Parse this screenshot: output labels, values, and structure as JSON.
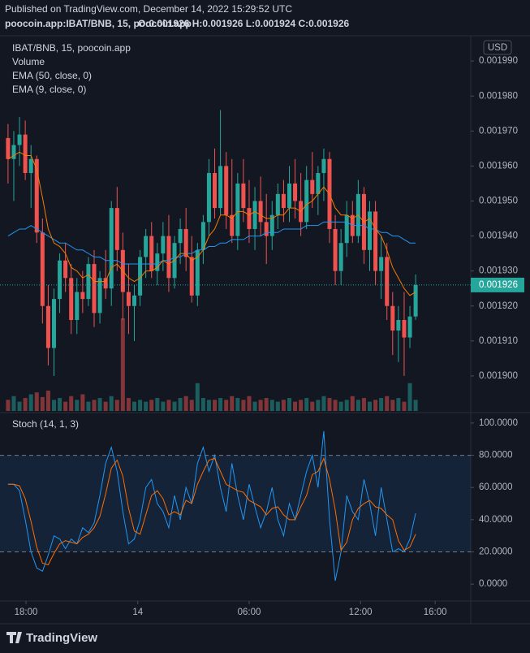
{
  "header": {
    "published": "Published on TradingView.com, December 14, 2022 15:29:52 UTC",
    "symbol": "poocoin.app:IBAT/BNB, 15, poocoin.app",
    "ohlc": "O:0.001926 H:0.001926 L:0.001924 C:0.001926"
  },
  "footer": {
    "logo": "TradingView"
  },
  "chart_data": [
    {
      "type": "candlestick",
      "title": "IBAT/BNB, 15, poocoin.app",
      "currency": "USD",
      "up_color": "#26a69a",
      "down_color": "#ef5350",
      "open": [
        0.001968,
        0.001962,
        0.001966,
        0.001969,
        0.001958,
        0.001962,
        0.001941,
        0.00192,
        0.001908,
        0.001922,
        0.001933,
        0.001928,
        0.001916,
        0.001924,
        0.001922,
        0.001932,
        0.001918,
        0.001928,
        0.001925,
        0.001948,
        0.001936,
        0.001924,
        0.00192,
        0.001923,
        0.001934,
        0.00194,
        0.00193,
        0.001935,
        0.00194,
        0.001928,
        0.001938,
        0.001942,
        0.001934,
        0.001923,
        0.001936,
        0.001944,
        0.001958,
        0.001948,
        0.00196,
        0.001946,
        0.00194,
        0.001955,
        0.001948,
        0.001942,
        0.00195,
        0.001944,
        0.00194,
        0.001946,
        0.001952,
        0.001948,
        0.001955,
        0.00195,
        0.001944,
        0.001956,
        0.001952,
        0.001958,
        0.001962,
        0.001942,
        0.00193,
        0.001938,
        0.001946,
        0.00194,
        0.001952,
        0.001936,
        0.001947,
        0.00193,
        0.001934,
        0.00192,
        0.001913,
        0.001916,
        0.001911,
        0.001917
      ],
      "high": [
        0.001972,
        0.00197,
        0.001974,
        0.001973,
        0.001966,
        0.001963,
        0.001945,
        0.001926,
        0.001925,
        0.001935,
        0.001938,
        0.001932,
        0.001928,
        0.00193,
        0.001934,
        0.001936,
        0.00193,
        0.001936,
        0.00195,
        0.001954,
        0.001941,
        0.001932,
        0.001926,
        0.001936,
        0.001942,
        0.001944,
        0.001938,
        0.001944,
        0.001946,
        0.00194,
        0.001945,
        0.001948,
        0.00194,
        0.001938,
        0.001946,
        0.001962,
        0.001965,
        0.001976,
        0.001964,
        0.001962,
        0.001958,
        0.001962,
        0.001956,
        0.001954,
        0.001957,
        0.001952,
        0.00195,
        0.001955,
        0.001956,
        0.00196,
        0.001962,
        0.001958,
        0.00196,
        0.001964,
        0.00196,
        0.001965,
        0.001964,
        0.001946,
        0.001942,
        0.00195,
        0.00195,
        0.001956,
        0.001954,
        0.00195,
        0.00195,
        0.00194,
        0.001938,
        0.001924,
        0.00192,
        0.001924,
        0.00192,
        0.001929
      ],
      "low": [
        0.001955,
        0.00195,
        0.00196,
        0.001956,
        0.001948,
        0.001938,
        0.001915,
        0.001903,
        0.0019,
        0.001918,
        0.001924,
        0.001912,
        0.001912,
        0.001918,
        0.00192,
        0.001914,
        0.001915,
        0.001922,
        0.00192,
        0.00193,
        0.001916,
        0.001912,
        0.00191,
        0.00192,
        0.001928,
        0.001928,
        0.001926,
        0.00193,
        0.001924,
        0.001925,
        0.001932,
        0.00193,
        0.001921,
        0.00192,
        0.001932,
        0.00194,
        0.001945,
        0.001946,
        0.001942,
        0.001938,
        0.001936,
        0.001944,
        0.001938,
        0.001936,
        0.00194,
        0.001932,
        0.001936,
        0.001942,
        0.001944,
        0.001944,
        0.001945,
        0.00194,
        0.001942,
        0.001948,
        0.001946,
        0.00195,
        0.001938,
        0.001926,
        0.001926,
        0.001934,
        0.001938,
        0.001938,
        0.001932,
        0.00193,
        0.001926,
        0.001922,
        0.001916,
        0.001906,
        0.001904,
        0.0019,
        0.001908,
        0.001916
      ],
      "close": [
        0.001962,
        0.001966,
        0.001969,
        0.001958,
        0.001962,
        0.001941,
        0.00192,
        0.001908,
        0.001922,
        0.001933,
        0.001928,
        0.001916,
        0.001924,
        0.001922,
        0.001932,
        0.001918,
        0.001928,
        0.001925,
        0.001948,
        0.001936,
        0.001924,
        0.00192,
        0.001923,
        0.001934,
        0.00194,
        0.00193,
        0.001935,
        0.00194,
        0.001928,
        0.001938,
        0.001942,
        0.001934,
        0.001923,
        0.001936,
        0.001944,
        0.001958,
        0.001948,
        0.00196,
        0.001946,
        0.00194,
        0.001955,
        0.001948,
        0.001942,
        0.00195,
        0.001944,
        0.00194,
        0.001946,
        0.001952,
        0.001948,
        0.001955,
        0.00195,
        0.001944,
        0.001956,
        0.001952,
        0.001958,
        0.001962,
        0.001942,
        0.00193,
        0.001938,
        0.001946,
        0.00194,
        0.001952,
        0.001936,
        0.001947,
        0.00193,
        0.001934,
        0.00192,
        0.001913,
        0.001916,
        0.001911,
        0.001917,
        0.001926
      ],
      "volume": {
        "name": "Volume",
        "values": [
          12,
          16,
          10,
          14,
          18,
          20,
          15,
          22,
          12,
          14,
          10,
          16,
          12,
          18,
          10,
          12,
          14,
          10,
          16,
          12,
          100,
          14,
          10,
          12,
          10,
          12,
          14,
          10,
          12,
          10,
          14,
          16,
          12,
          30,
          14,
          12,
          12,
          14,
          12,
          16,
          14,
          12,
          16,
          10,
          12,
          14,
          12,
          10,
          12,
          14,
          10,
          12,
          14,
          10,
          12,
          16,
          14,
          12,
          10,
          12,
          16,
          12,
          14,
          10,
          12,
          14,
          16,
          12,
          14,
          10,
          30,
          12
        ]
      },
      "series": [
        {
          "name": "EMA (50, close, 0)",
          "color": "#2196f3",
          "values": [
            0.00194,
            0.001941,
            0.001942,
            0.001942,
            0.001943,
            0.001942,
            0.001941,
            0.00194,
            0.001939,
            0.001938,
            0.001938,
            0.001937,
            0.001936,
            0.001936,
            0.001935,
            0.001934,
            0.001934,
            0.001933,
            0.001933,
            0.001933,
            0.001932,
            0.001932,
            0.001932,
            0.001932,
            0.001932,
            0.001932,
            0.001932,
            0.001933,
            0.001933,
            0.001934,
            0.001934,
            0.001935,
            0.001935,
            0.001936,
            0.001936,
            0.001937,
            0.001937,
            0.001938,
            0.001938,
            0.001939,
            0.001939,
            0.001939,
            0.00194,
            0.00194,
            0.00194,
            0.001941,
            0.001941,
            0.001941,
            0.001942,
            0.001942,
            0.001942,
            0.001942,
            0.001943,
            0.001943,
            0.001943,
            0.001944,
            0.001944,
            0.001944,
            0.001944,
            0.001944,
            0.001943,
            0.001943,
            0.001943,
            0.001942,
            0.001942,
            0.001941,
            0.001941,
            0.00194,
            0.00194,
            0.001939,
            0.001938,
            0.001938
          ]
        },
        {
          "name": "EMA (9, close, 0)",
          "color": "#f57c00",
          "values": [
            0.001962,
            0.001963,
            0.001964,
            0.001963,
            0.001963,
            0.001959,
            0.001951,
            0.001942,
            0.001938,
            0.001937,
            0.001935,
            0.001931,
            0.00193,
            0.001928,
            0.001929,
            0.001927,
            0.001927,
            0.001927,
            0.001931,
            0.001932,
            0.00193,
            0.001928,
            0.001927,
            0.001928,
            0.00193,
            0.00193,
            0.001931,
            0.001933,
            0.001932,
            0.001933,
            0.001935,
            0.001935,
            0.001933,
            0.001934,
            0.001936,
            0.00194,
            0.001942,
            0.001946,
            0.001946,
            0.001945,
            0.001947,
            0.001947,
            0.001946,
            0.001947,
            0.001946,
            0.001945,
            0.001945,
            0.001946,
            0.001946,
            0.001948,
            0.001948,
            0.001947,
            0.001949,
            0.00195,
            0.001952,
            0.001954,
            0.001952,
            0.001948,
            0.001946,
            0.001946,
            0.001945,
            0.001946,
            0.001944,
            0.001945,
            0.001942,
            0.00194,
            0.001936,
            0.001931,
            0.001928,
            0.001925,
            0.001923,
            0.001924
          ]
        }
      ],
      "last_price": {
        "value": 0.001926,
        "label": "0.001926"
      },
      "ylim": [
        0.00189,
        0.001997
      ],
      "yticks": [
        {
          "value": 0.0019,
          "label": "0.001900"
        },
        {
          "value": 0.00191,
          "label": "0.001910"
        },
        {
          "value": 0.00192,
          "label": "0.001920"
        },
        {
          "value": 0.00193,
          "label": "0.001930"
        },
        {
          "value": 0.00194,
          "label": "0.001940"
        },
        {
          "value": 0.00195,
          "label": "0.001950"
        },
        {
          "value": 0.00196,
          "label": "0.001960"
        },
        {
          "value": 0.00197,
          "label": "0.001970"
        },
        {
          "value": 0.00198,
          "label": "0.001980"
        },
        {
          "value": 0.00199,
          "label": "0.001990"
        }
      ],
      "xlim": [
        -1.4,
        80.6
      ],
      "xticks": [
        {
          "value": 3.13,
          "label": "18:00"
        },
        {
          "value": 22.6,
          "label": "14"
        },
        {
          "value": 42,
          "label": "06:00"
        },
        {
          "value": 61.4,
          "label": "12:00"
        },
        {
          "value": 74.4,
          "label": "16:00"
        }
      ]
    },
    {
      "type": "line",
      "title": "Stoch (14, 1, 3)",
      "series": [
        {
          "color": "#2196f3",
          "values": [
            62,
            62,
            58,
            40,
            20,
            10,
            8,
            18,
            30,
            28,
            22,
            28,
            25,
            35,
            32,
            38,
            55,
            75,
            85,
            70,
            45,
            25,
            28,
            40,
            60,
            65,
            50,
            45,
            35,
            55,
            40,
            60,
            50,
            75,
            85,
            70,
            80,
            60,
            45,
            75,
            55,
            40,
            62,
            48,
            35,
            45,
            60,
            40,
            30,
            50,
            40,
            55,
            70,
            80,
            60,
            95,
            40,
            2,
            20,
            55,
            45,
            40,
            65,
            50,
            30,
            60,
            40,
            20,
            22,
            20,
            28,
            44
          ]
        },
        {
          "color": "#ff6d00",
          "values": [
            62,
            62,
            61,
            53,
            39,
            23,
            13,
            12,
            19,
            25,
            27,
            26,
            25,
            29,
            31,
            35,
            42,
            56,
            72,
            77,
            67,
            47,
            33,
            31,
            43,
            55,
            58,
            53,
            43,
            45,
            43,
            52,
            50,
            62,
            70,
            77,
            78,
            70,
            62,
            60,
            58,
            57,
            52,
            50,
            48,
            43,
            47,
            48,
            43,
            40,
            40,
            48,
            55,
            68,
            70,
            78,
            65,
            46,
            21,
            26,
            40,
            47,
            50,
            52,
            48,
            47,
            43,
            40,
            27,
            21,
            23,
            31
          ]
        }
      ],
      "bands": [
        20,
        80
      ],
      "ylim": [
        -10,
        105
      ],
      "yticks": [
        {
          "value": 0,
          "label": "0.0000"
        },
        {
          "value": 20,
          "label": "20.0000"
        },
        {
          "value": 40,
          "label": "40.0000"
        },
        {
          "value": 60,
          "label": "60.0000"
        },
        {
          "value": 80,
          "label": "80.0000"
        },
        {
          "value": 100,
          "label": "100.0000"
        }
      ]
    }
  ]
}
